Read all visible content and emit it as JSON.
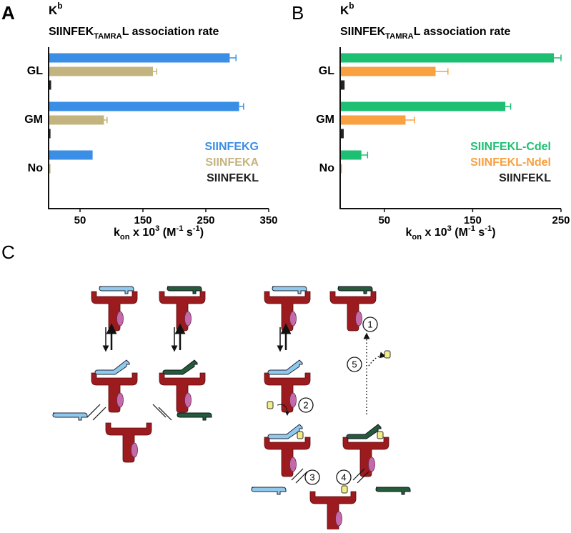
{
  "panel_labels": [
    "A",
    "B",
    "C"
  ],
  "chart_data": [
    {
      "type": "bar",
      "orientation": "horizontal",
      "title": "K",
      "title_superscript": "b",
      "subtitle_parts": [
        {
          "text": "SIINFEK"
        },
        {
          "text": "TAMRA",
          "shift": "sub"
        },
        {
          "text": "L association rate"
        }
      ],
      "xlabel_parts": [
        {
          "text": "k"
        },
        {
          "text": "on",
          "shift": "sub"
        },
        {
          "text": " x 10"
        },
        {
          "text": "3",
          "shift": "super"
        },
        {
          "text": " (M"
        },
        {
          "text": "-1",
          "shift": "super"
        },
        {
          "text": " s"
        },
        {
          "text": "-1",
          "shift": "super"
        },
        {
          "text": ")"
        }
      ],
      "categories": [
        "GL",
        "GM",
        "No"
      ],
      "series": [
        {
          "name": "SIINFEKG",
          "color": "#3a8ee6",
          "values": [
            288,
            303,
            70
          ],
          "errors": [
            10,
            7,
            null
          ]
        },
        {
          "name": "SIINFEKA",
          "color": "#c3b47f",
          "values": [
            166,
            88,
            3
          ],
          "errors": [
            6,
            5,
            null
          ]
        },
        {
          "name": "SIINFEKL",
          "color": "#222222",
          "values": [
            4,
            3,
            0
          ],
          "errors": [
            null,
            null,
            null
          ]
        }
      ],
      "xlim": [
        0,
        350
      ],
      "xticks": [
        50,
        150,
        250,
        350
      ],
      "legend": "lower right"
    },
    {
      "type": "bar",
      "orientation": "horizontal",
      "title": "K",
      "title_superscript": "b",
      "subtitle_parts": [
        {
          "text": "SIINFEK"
        },
        {
          "text": "TAMRA",
          "shift": "sub"
        },
        {
          "text": "L association rate"
        }
      ],
      "xlabel_parts": [
        {
          "text": "k"
        },
        {
          "text": "on",
          "shift": "sub"
        },
        {
          "text": " x 10"
        },
        {
          "text": "3",
          "shift": "super"
        },
        {
          "text": " (M"
        },
        {
          "text": "-1",
          "shift": "super"
        },
        {
          "text": " s"
        },
        {
          "text": "-1",
          "shift": "super"
        },
        {
          "text": ")"
        }
      ],
      "categories": [
        "GL",
        "GM",
        "No"
      ],
      "series": [
        {
          "name": "SIINFEKL-Cdel",
          "color": "#1dbf73",
          "values": [
            242,
            187,
            24
          ],
          "errors": [
            8,
            6,
            7
          ]
        },
        {
          "name": "SIINFEKL-Ndel",
          "color": "#f9a040",
          "values": [
            108,
            74,
            2
          ],
          "errors": [
            14,
            10,
            null
          ]
        },
        {
          "name": "SIINFEKL",
          "color": "#222222",
          "values": [
            5,
            4,
            0
          ],
          "errors": [
            null,
            null,
            null
          ]
        }
      ],
      "xlim": [
        0,
        250
      ],
      "xticks": [
        50,
        150,
        250
      ],
      "legend": "lower right"
    }
  ],
  "diagram": {
    "step_labels": [
      "1",
      "2",
      "3",
      "4",
      "5"
    ]
  }
}
